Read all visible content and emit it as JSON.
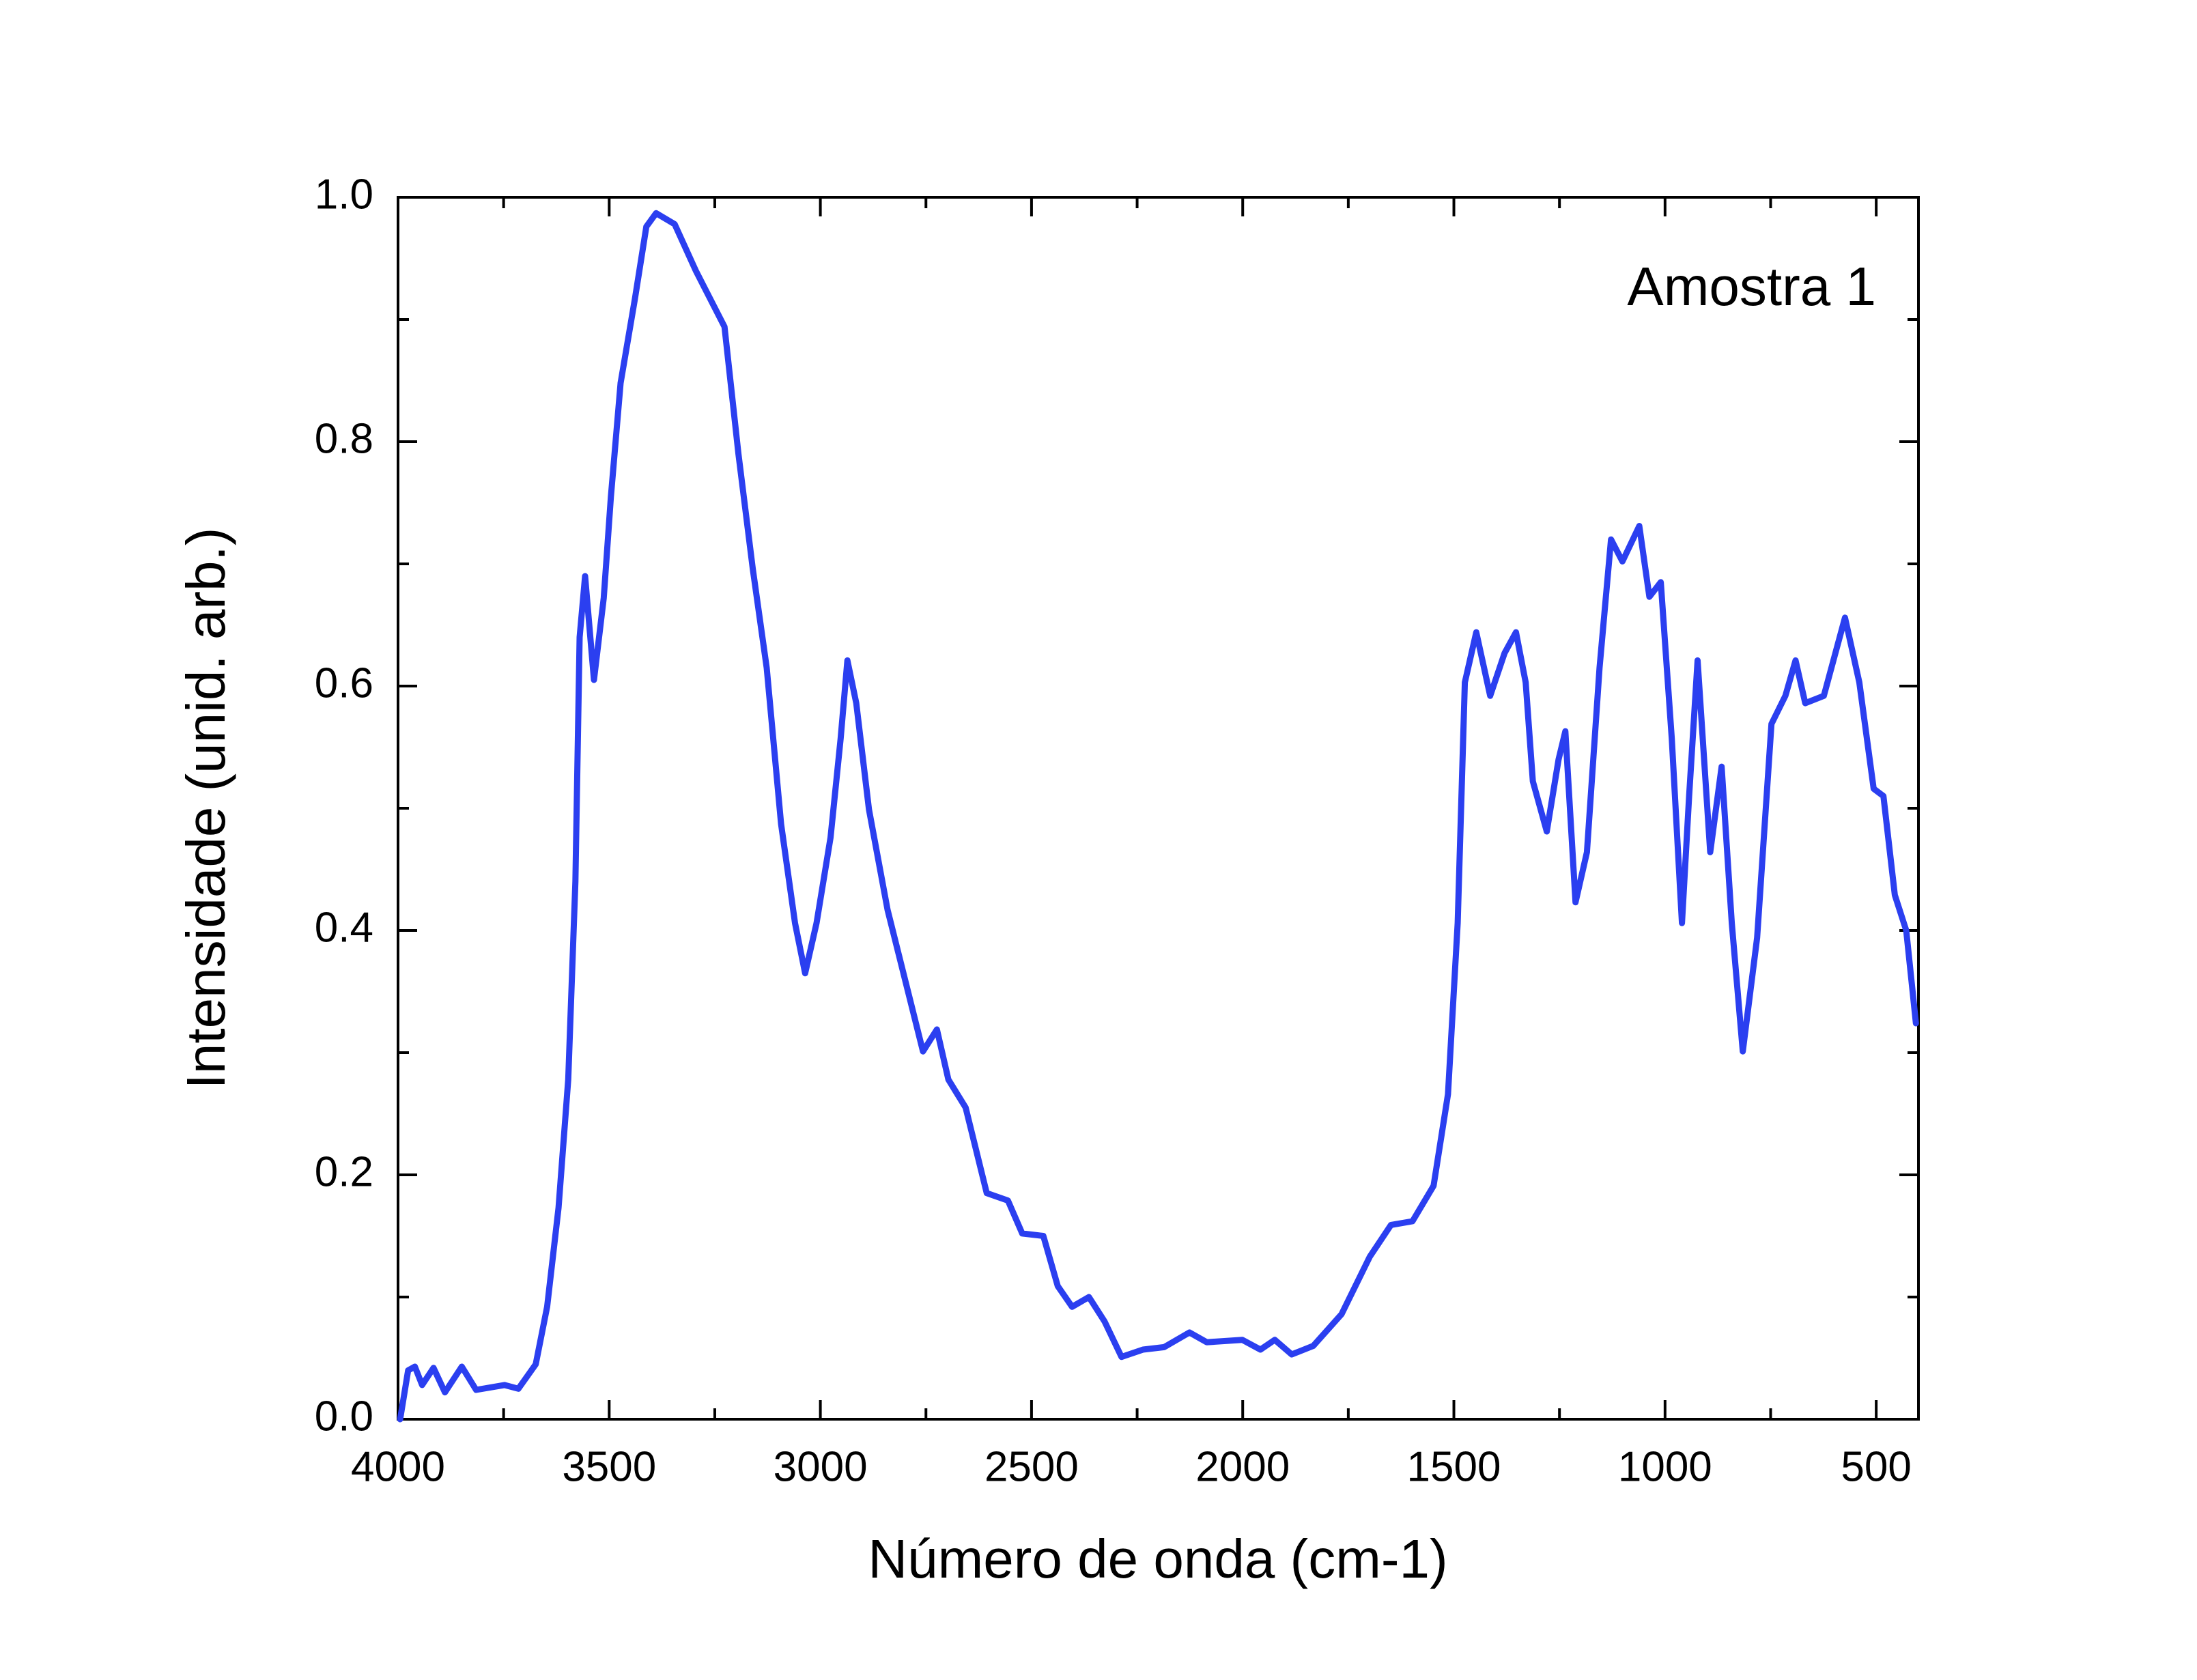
{
  "chart_data": {
    "type": "line",
    "xlabel": "Número de onda (cm-1)",
    "ylabel": "Intensidade (unid. arb.)",
    "annotation": "Amostra 1",
    "color": "#2b3ff0",
    "x": [
      3995,
      3976,
      3960,
      3943,
      3916,
      3889,
      3849,
      3815,
      3748,
      3715,
      3674,
      3647,
      3620,
      3597,
      3580,
      3570,
      3557,
      3536,
      3513,
      3496,
      3473,
      3439,
      3412,
      3389,
      3345,
      3295,
      3227,
      3194,
      3160,
      3127,
      3093,
      3060,
      3036,
      3009,
      2976,
      2952,
      2936,
      2915,
      2885,
      2841,
      2791,
      2757,
      2724,
      2697,
      2656,
      2606,
      2556,
      2522,
      2472,
      2438,
      2404,
      2364,
      2327,
      2287,
      2236,
      2186,
      2126,
      2085,
      2001,
      1958,
      1924,
      1884,
      1833,
      1766,
      1699,
      1649,
      1598,
      1548,
      1514,
      1491,
      1474,
      1447,
      1414,
      1380,
      1353,
      1330,
      1313,
      1280,
      1252,
      1236,
      1212,
      1185,
      1155,
      1128,
      1101,
      1061,
      1037,
      1010,
      984,
      960,
      943,
      923,
      893,
      866,
      842,
      816,
      782,
      748,
      715,
      691,
      668,
      624,
      574,
      540,
      506,
      483,
      456,
      429,
      406
    ],
    "values": [
      0.0,
      0.04,
      0.043,
      0.028,
      0.042,
      0.022,
      0.043,
      0.024,
      0.028,
      0.025,
      0.045,
      0.092,
      0.173,
      0.278,
      0.44,
      0.64,
      0.69,
      0.605,
      0.672,
      0.755,
      0.848,
      0.917,
      0.976,
      0.987,
      0.978,
      0.94,
      0.894,
      0.79,
      0.696,
      0.615,
      0.487,
      0.406,
      0.365,
      0.406,
      0.476,
      0.557,
      0.621,
      0.586,
      0.499,
      0.417,
      0.348,
      0.301,
      0.319,
      0.278,
      0.255,
      0.185,
      0.179,
      0.152,
      0.15,
      0.109,
      0.092,
      0.1,
      0.08,
      0.051,
      0.057,
      0.059,
      0.071,
      0.063,
      0.065,
      0.057,
      0.065,
      0.053,
      0.06,
      0.086,
      0.133,
      0.159,
      0.162,
      0.191,
      0.266,
      0.406,
      0.603,
      0.644,
      0.592,
      0.627,
      0.644,
      0.603,
      0.522,
      0.481,
      0.54,
      0.563,
      0.423,
      0.464,
      0.615,
      0.72,
      0.702,
      0.731,
      0.673,
      0.685,
      0.557,
      0.406,
      0.51,
      0.621,
      0.464,
      0.534,
      0.406,
      0.301,
      0.394,
      0.569,
      0.592,
      0.621,
      0.586,
      0.592,
      0.656,
      0.603,
      0.516,
      0.51,
      0.429,
      0.4,
      0.324
    ],
    "xlim": [
      4000,
      400
    ],
    "ylim": [
      0,
      1
    ],
    "xticks": [
      4000,
      3500,
      3000,
      2500,
      2000,
      1500,
      1000,
      500
    ],
    "yticks": [
      {
        "value": 0,
        "label": "0.0"
      },
      0.2,
      0.4,
      0.6,
      0.8,
      {
        "value": 1,
        "label": "1.0"
      }
    ],
    "xminorticks": [
      3750,
      3250,
      2750,
      2250,
      1750,
      1250,
      750
    ],
    "yminorticks": [
      0.1,
      0.3,
      0.5,
      0.7,
      0.9
    ],
    "grid": false
  }
}
